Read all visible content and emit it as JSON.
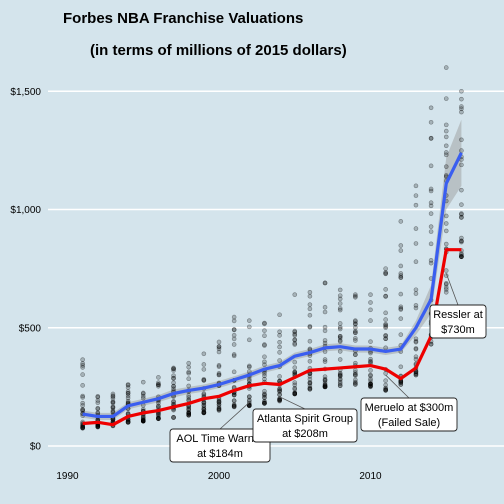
{
  "chart_data": {
    "type": "scatter",
    "title": "Forbes NBA Franchise Valuations",
    "subtitle": "(in terms of millions of 2015 dollars)",
    "xlabel": "",
    "ylabel": "",
    "xlim": [
      1990,
      2016
    ],
    "ylim": [
      0,
      1600
    ],
    "x_ticks": [
      {
        "value": 1990,
        "label": "1990"
      },
      {
        "value": 2000,
        "label": "2000"
      },
      {
        "value": 2010,
        "label": "2010"
      }
    ],
    "y_ticks": [
      {
        "value": 0,
        "label": "$0"
      },
      {
        "value": 500,
        "label": "$500"
      },
      {
        "value": 1000,
        "label": "$1,000"
      },
      {
        "value": 1500,
        "label": "$1,500"
      }
    ],
    "grid": true,
    "background": "#d4e4ec",
    "points_color": "#000000",
    "points_range": [
      {
        "x": 1991,
        "min": 75,
        "max": 365
      },
      {
        "x": 1992,
        "min": 80,
        "max": 210
      },
      {
        "x": 1993,
        "min": 85,
        "max": 220
      },
      {
        "x": 1994,
        "min": 100,
        "max": 260
      },
      {
        "x": 1995,
        "min": 105,
        "max": 270
      },
      {
        "x": 1996,
        "min": 115,
        "max": 290
      },
      {
        "x": 1997,
        "min": 120,
        "max": 330
      },
      {
        "x": 1998,
        "min": 130,
        "max": 350
      },
      {
        "x": 1999,
        "min": 140,
        "max": 390
      },
      {
        "x": 2000,
        "min": 150,
        "max": 440
      },
      {
        "x": 2001,
        "min": 165,
        "max": 545
      },
      {
        "x": 2002,
        "min": 170,
        "max": 530
      },
      {
        "x": 2003,
        "min": 180,
        "max": 520
      },
      {
        "x": 2004,
        "min": 190,
        "max": 555
      },
      {
        "x": 2005,
        "min": 220,
        "max": 640
      },
      {
        "x": 2006,
        "min": 240,
        "max": 650
      },
      {
        "x": 2007,
        "min": 250,
        "max": 690
      },
      {
        "x": 2008,
        "min": 255,
        "max": 660
      },
      {
        "x": 2009,
        "min": 260,
        "max": 640
      },
      {
        "x": 2010,
        "min": 250,
        "max": 640
      },
      {
        "x": 2011,
        "min": 235,
        "max": 750
      },
      {
        "x": 2012,
        "min": 260,
        "max": 950
      },
      {
        "x": 2013,
        "min": 300,
        "max": 1100
      },
      {
        "x": 2014,
        "min": 430,
        "max": 1430
      },
      {
        "x": 2015,
        "min": 650,
        "max": 1600
      },
      {
        "x": 2016,
        "min": 800,
        "max": 1500
      }
    ],
    "series": [
      {
        "color": "#3a5ef0",
        "x": [
          1991,
          1992,
          1993,
          1994,
          1995,
          1996,
          1997,
          1998,
          1999,
          2000,
          2001,
          2002,
          2003,
          2004,
          2005,
          2006,
          2007,
          2008,
          2009,
          2010,
          2011,
          2012,
          2013,
          2014,
          2015,
          2016
        ],
        "values": [
          135,
          125,
          125,
          170,
          185,
          200,
          222,
          235,
          245,
          260,
          280,
          300,
          325,
          340,
          380,
          395,
          415,
          420,
          410,
          410,
          400,
          410,
          500,
          620,
          1110,
          1240
        ],
        "band_low": [
          120,
          110,
          110,
          155,
          170,
          185,
          205,
          220,
          230,
          245,
          265,
          285,
          310,
          325,
          365,
          380,
          400,
          405,
          395,
          395,
          385,
          395,
          470,
          560,
          1000,
          1100
        ],
        "band_high": [
          150,
          140,
          140,
          185,
          200,
          215,
          239,
          250,
          260,
          275,
          295,
          315,
          340,
          355,
          395,
          410,
          430,
          435,
          425,
          425,
          415,
          425,
          530,
          680,
          1220,
          1380
        ]
      },
      {
        "color": "#ee0000",
        "x": [
          1991,
          1992,
          1993,
          1994,
          1995,
          1996,
          1997,
          1998,
          1999,
          2000,
          2001,
          2002,
          2003,
          2004,
          2005,
          2006,
          2007,
          2008,
          2009,
          2010,
          2011,
          2012,
          2013,
          2014,
          2015,
          2016
        ],
        "values": [
          95,
          100,
          90,
          125,
          140,
          150,
          165,
          180,
          200,
          210,
          235,
          255,
          265,
          260,
          290,
          320,
          325,
          330,
          335,
          340,
          325,
          285,
          330,
          465,
          830,
          830
        ]
      }
    ],
    "annotations": [
      {
        "lines": [
          "AOL Time Warner",
          "at $184m"
        ],
        "x": 2002,
        "y": 184
      },
      {
        "lines": [
          "Atlanta Spirit Group",
          "at $208m"
        ],
        "x": 2004,
        "y": 208
      },
      {
        "lines": [
          "Meruelo at $300m",
          "(Failed Sale)"
        ],
        "x": 2011,
        "y": 300
      },
      {
        "lines": [
          "Ressler at",
          "$730m"
        ],
        "x": 2015,
        "y": 730
      }
    ]
  }
}
